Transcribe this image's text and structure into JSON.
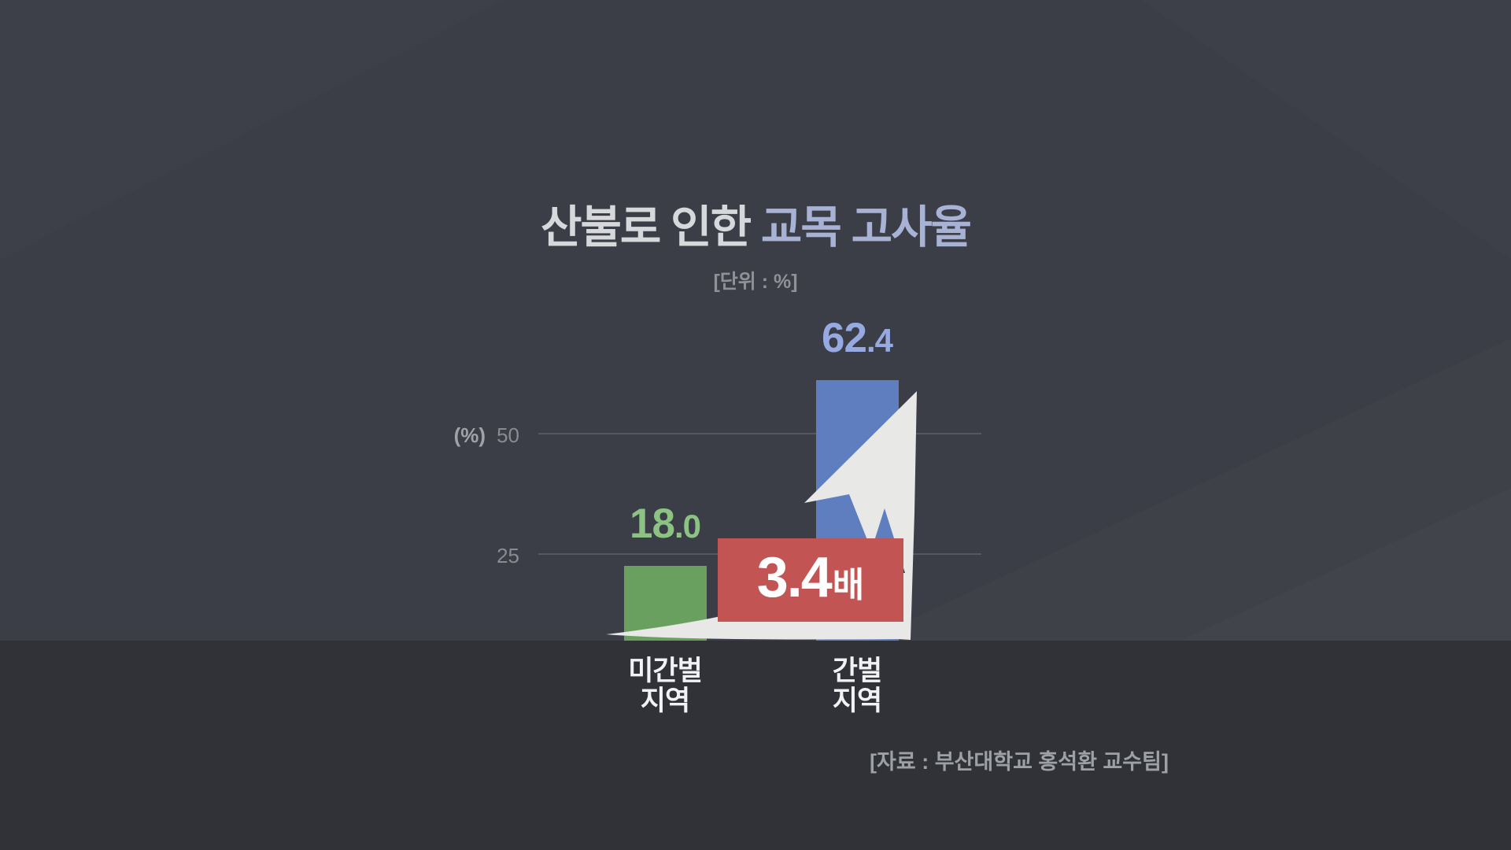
{
  "page": {
    "title_prefix": "산불로 인한",
    "title_highlight": "교목 고사율",
    "unit_note": "[단위 : %]",
    "source_note": "[자료 : 부산대학교 홍석환 교수팀]"
  },
  "axis": {
    "unit_label": "(%)",
    "tick_50": "50",
    "tick_25": "25"
  },
  "badge": {
    "value": "3.4",
    "suffix": "배"
  },
  "display": {
    "bars": [
      {
        "value_int": "18",
        "value_dec": ".0",
        "label_line1": "미간벌",
        "label_line2": "지역"
      },
      {
        "value_int": "62",
        "value_dec": ".4",
        "label_line1": "간벌",
        "label_line2": "지역"
      }
    ]
  },
  "chart_data": {
    "type": "bar",
    "title": "산불로 인한 교목 고사율",
    "unit": "%",
    "categories": [
      "미간벌 지역",
      "간벌 지역"
    ],
    "values": [
      18.0,
      62.4
    ],
    "yticks": [
      25,
      50
    ],
    "ylim": [
      0,
      70
    ],
    "ylabel": "(%)",
    "grid": "horizontal",
    "legend_position": "none",
    "annotation": "3.4배",
    "bar_colors": [
      "#69a05f",
      "#5e7ec0"
    ],
    "value_label_colors": [
      "#8cc384",
      "#96aae1"
    ],
    "source": "[자료 : 부산대학교 홍석환 교수팀]"
  },
  "colors": {
    "background": "#3b3e46",
    "floor": "#303237",
    "title_text": "#d6d8dc",
    "title_highlight": "#a8b2d4",
    "muted_text": "#8e9197",
    "gridline": "#55585e",
    "category_text": "#f1f2f3",
    "arrow": "#e8e8e6",
    "badge_bg": "#c25454",
    "badge_text": "#ffffff"
  }
}
